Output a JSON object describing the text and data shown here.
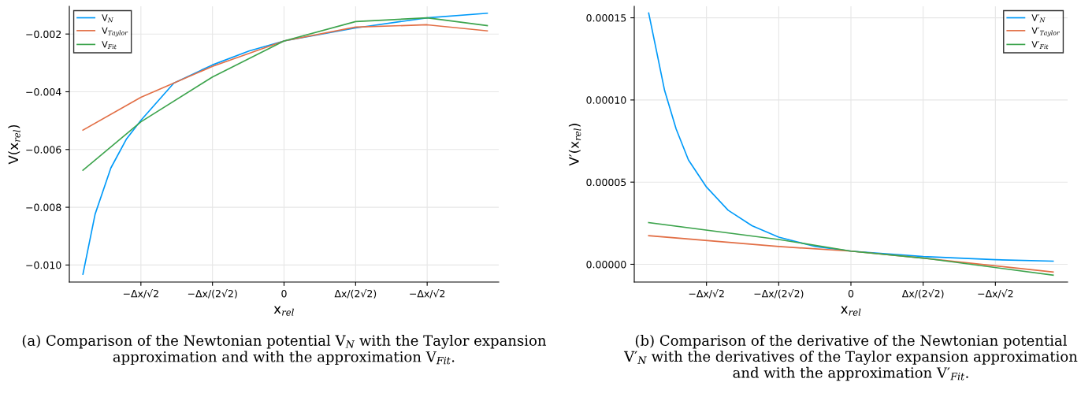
{
  "chart_data": [
    {
      "type": "line",
      "xlabel": "x$_{rel}$",
      "ylabel": "V(x$_{rel}$)",
      "xlim": [
        -3,
        3
      ],
      "xticks": [
        {
          "value": -2,
          "label": "−Δx/√2"
        },
        {
          "value": -1,
          "label": "−Δx/(2√2)"
        },
        0,
        {
          "value": 1,
          "label": "Δx/(2√2)"
        },
        {
          "value": 2,
          "label": "−Δx/√2"
        }
      ],
      "ylim": [
        -0.01059,
        -0.00104
      ],
      "yticks": [
        {
          "value": -0.01,
          "label": "−0.010"
        },
        {
          "value": -0.008,
          "label": "−0.008"
        },
        {
          "value": -0.006,
          "label": "−0.006"
        },
        {
          "value": -0.004,
          "label": "−0.004"
        },
        {
          "value": -0.002,
          "label": "−0.002"
        }
      ],
      "grid": true,
      "legend": "top left",
      "series": [
        {
          "name": "V$_{N}$",
          "color": "#009af9",
          "x": [
            -2.81,
            -2.64,
            -2.42,
            -2.2,
            -2,
            -1.54,
            -1,
            -0.49,
            0,
            1,
            2,
            2.84
          ],
          "values": [
            -0.01032,
            -0.00824,
            -0.00664,
            -0.00563,
            -0.00499,
            -0.0037,
            -0.00307,
            -0.00259,
            -0.00224,
            -0.00179,
            -0.00144,
            -0.00128
          ]
        },
        {
          "name": "V$_{Taylor}$",
          "color": "#e26f46",
          "x": [
            -2.81,
            -2,
            -1,
            0,
            1,
            2,
            2.84
          ],
          "values": [
            -0.00533,
            -0.00419,
            -0.00312,
            -0.00224,
            -0.00176,
            -0.00168,
            -0.00189
          ]
        },
        {
          "name": "V$_{Fit}$",
          "color": "#3da44d",
          "x": [
            -2.81,
            -2,
            -1,
            0,
            1,
            2,
            2.84
          ],
          "values": [
            -0.00672,
            -0.00504,
            -0.00349,
            -0.00224,
            -0.00157,
            -0.00144,
            -0.00171
          ]
        }
      ],
      "annotations": [
        "(a) Comparison of the Newtonian potential V$_{N}$ with the Taylor expansion approximation and with the approximation V$_{Fit}$."
      ]
    },
    {
      "type": "line",
      "xlabel": "x$_{rel}$",
      "ylabel": "V′(x$_{rel}$)",
      "xlim": [
        -3,
        3
      ],
      "xticks": [
        {
          "value": -2,
          "label": "−Δx/√2"
        },
        {
          "value": -1,
          "label": "−Δx/(2√2)"
        },
        0,
        {
          "value": 1,
          "label": "Δx/(2√2)"
        },
        {
          "value": 2,
          "label": "−Δx/√2"
        }
      ],
      "ylim": [
        -1.08e-05,
        0.000157
      ],
      "yticks": [
        {
          "value": 0,
          "label": "0.00000"
        },
        {
          "value": 5e-05,
          "label": "0.00005"
        },
        {
          "value": 0.0001,
          "label": "0.00010"
        },
        {
          "value": 0.00015,
          "label": "0.00015"
        }
      ],
      "grid": true,
      "legend": "top right",
      "series": [
        {
          "name": "V′$_{N}$",
          "color": "#009af9",
          "x": [
            -2.8,
            -2.69,
            -2.58,
            -2.42,
            -2.25,
            -2,
            -1.7,
            -1.37,
            -1,
            -0.49,
            0,
            1,
            2,
            2.8
          ],
          "values": [
            0.0001529,
            0.0001294,
            0.0001058,
            8.23e-05,
            6.35e-05,
            4.7e-05,
            3.29e-05,
            2.35e-05,
            1.65e-05,
            1.08e-05,
            8e-06,
            4.7e-06,
            2.8e-06,
            1.9e-06
          ]
        },
        {
          "name": "V′$_{Taylor}$",
          "color": "#e26f46",
          "x": [
            -2.8,
            -1,
            0,
            1,
            2.8
          ],
          "values": [
            1.74e-05,
            1.08e-05,
            8e-06,
            3.8e-06,
            -4.7e-06
          ]
        },
        {
          "name": "V′$_{Fit}$",
          "color": "#3da44d",
          "x": [
            -2.8,
            -1,
            0,
            1,
            2.8
          ],
          "values": [
            2.54e-05,
            1.51e-05,
            8e-06,
            3.8e-06,
            -6.6e-06
          ]
        }
      ],
      "annotations": [
        "(b) Comparison of the derivative of the Newtonian potential V′$_{N}$ with the derivatives of the Taylor expansion approximation and with the approximation V′$_{Fit}$."
      ]
    }
  ]
}
